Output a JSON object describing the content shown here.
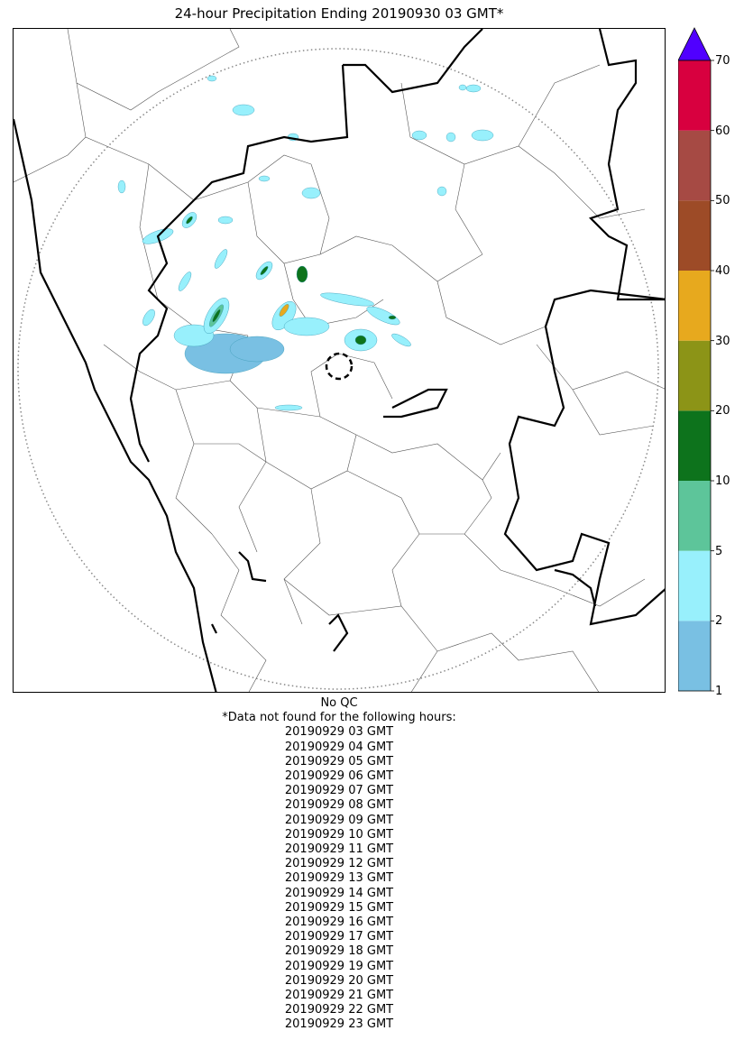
{
  "title": "24-hour Precipitation Ending 20190930 03 GMT*",
  "colorbar": {
    "ticks": [
      "1",
      "2",
      "5",
      "10",
      "20",
      "30",
      "40",
      "50",
      "60",
      "70"
    ],
    "bins": [
      {
        "from": "1",
        "to": "2",
        "color": "#79c0e3"
      },
      {
        "from": "2",
        "to": "5",
        "color": "#98f0fc"
      },
      {
        "from": "5",
        "to": "10",
        "color": "#5dc59a"
      },
      {
        "from": "10",
        "to": "20",
        "color": "#0d731c"
      },
      {
        "from": "20",
        "to": "30",
        "color": "#8c9417"
      },
      {
        "from": "30",
        "to": "40",
        "color": "#e7a91e"
      },
      {
        "from": "40",
        "to": "50",
        "color": "#9d4b27"
      },
      {
        "from": "50",
        "to": "60",
        "color": "#a64a44"
      },
      {
        "from": "60",
        "to": "70",
        "color": "#d8003f"
      }
    ],
    "over_color": "#5000ff"
  },
  "notes": {
    "qc": "No QC",
    "missing_header": "*Data not found for the following hours:",
    "missing_hours": [
      "20190929 03 GMT",
      "20190929 04 GMT",
      "20190929 05 GMT",
      "20190929 06 GMT",
      "20190929 07 GMT",
      "20190929 08 GMT",
      "20190929 09 GMT",
      "20190929 10 GMT",
      "20190929 11 GMT",
      "20190929 12 GMT",
      "20190929 13 GMT",
      "20190929 14 GMT",
      "20190929 15 GMT",
      "20190929 16 GMT",
      "20190929 17 GMT",
      "20190929 18 GMT",
      "20190929 19 GMT",
      "20190929 20 GMT",
      "20190929 21 GMT",
      "20190929 22 GMT",
      "20190929 23 GMT"
    ]
  }
}
